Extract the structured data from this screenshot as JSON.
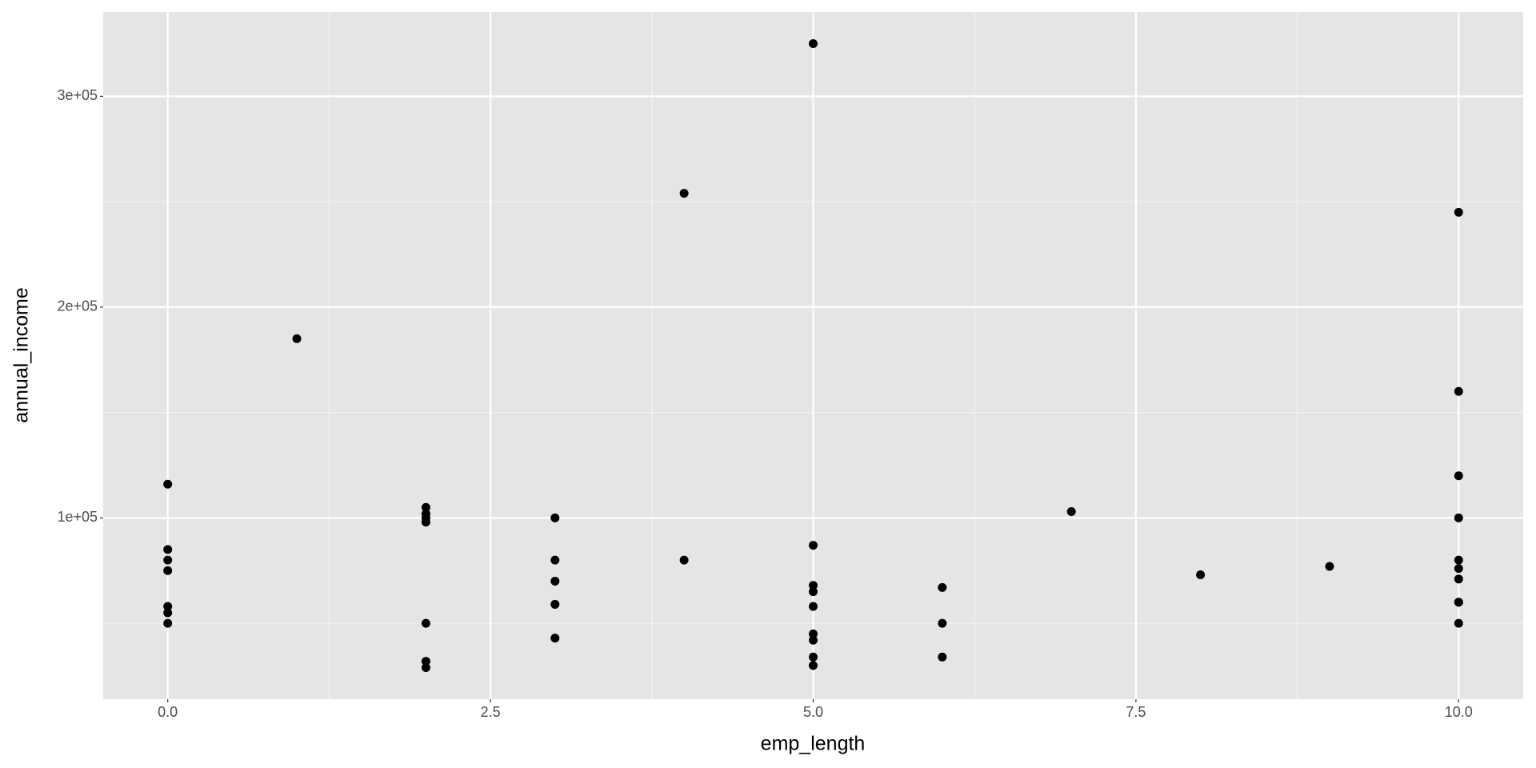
{
  "chart_data": {
    "type": "scatter",
    "x_label": "emp_length",
    "y_label": "annual_income",
    "x": [
      0,
      0,
      0,
      0,
      0,
      0,
      0,
      1,
      2,
      2,
      2,
      2,
      2,
      2,
      2,
      3,
      3,
      3,
      3,
      3,
      4,
      4,
      5,
      5,
      5,
      5,
      5,
      5,
      5,
      5,
      5,
      6,
      6,
      6,
      7,
      8,
      9,
      10,
      10,
      10,
      10,
      10,
      10,
      10,
      10,
      10,
      10
    ],
    "values": [
      116000,
      85000,
      80000,
      75000,
      58000,
      55000,
      50000,
      185000,
      105000,
      102000,
      100000,
      98000,
      50000,
      32000,
      29000,
      100000,
      80000,
      70000,
      59000,
      43000,
      254000,
      80000,
      325000,
      87000,
      68000,
      65000,
      58000,
      45000,
      42000,
      34000,
      30000,
      67000,
      50000,
      34000,
      103000,
      73000,
      77000,
      245000,
      160000,
      120000,
      100000,
      80000,
      76000,
      71000,
      60000,
      60000,
      50000
    ],
    "color": "#000000",
    "xlim": [
      -0.5,
      10.5
    ],
    "ylim": [
      14000,
      340000
    ],
    "xticks": [
      {
        "value": 0,
        "label": "0.0"
      },
      2.5,
      {
        "value": 5,
        "label": "5.0"
      },
      7.5,
      {
        "value": 10,
        "label": "10.0"
      }
    ],
    "yticks": [
      {
        "value": 100000,
        "label": "1e+05"
      },
      {
        "value": 200000,
        "label": "2e+05"
      },
      {
        "value": 300000,
        "label": "3e+05"
      }
    ],
    "grid": true
  }
}
